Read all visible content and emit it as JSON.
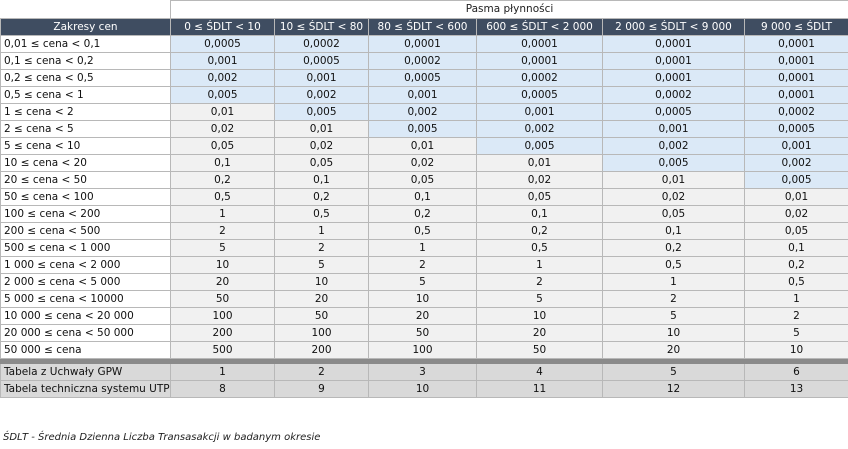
{
  "header": {
    "group_title": "Pasma płynności",
    "row_header": "Zakresy cen",
    "columns": [
      "0 ≤ ŚDLT < 10",
      "10 ≤ ŚDLT < 80",
      "80 ≤ ŚDLT < 600",
      "600 ≤ ŚDLT < 2 000",
      "2 000 ≤  ŚDLT < 9 000",
      "9 000 ≤  ŚDLT"
    ]
  },
  "rows": [
    {
      "label": "0,01 ≤ cena < 0,1",
      "values": [
        "0,0005",
        "0,0002",
        "0,0001",
        "0,0001",
        "0,0001",
        "0,0001"
      ],
      "shade": [
        "blue",
        "blue",
        "blue",
        "blue",
        "blue",
        "blue"
      ]
    },
    {
      "label": "0,1 ≤ cena < 0,2",
      "values": [
        "0,001",
        "0,0005",
        "0,0002",
        "0,0001",
        "0,0001",
        "0,0001"
      ],
      "shade": [
        "blue",
        "blue",
        "blue",
        "blue",
        "blue",
        "blue"
      ]
    },
    {
      "label": "0,2 ≤ cena < 0,5",
      "values": [
        "0,002",
        "0,001",
        "0,0005",
        "0,0002",
        "0,0001",
        "0,0001"
      ],
      "shade": [
        "blue",
        "blue",
        "blue",
        "blue",
        "blue",
        "blue"
      ]
    },
    {
      "label": "0,5 ≤ cena < 1",
      "values": [
        "0,005",
        "0,002",
        "0,001",
        "0,0005",
        "0,0002",
        "0,0001"
      ],
      "shade": [
        "blue",
        "blue",
        "blue",
        "blue",
        "blue",
        "blue"
      ]
    },
    {
      "label": "1 ≤ cena < 2",
      "values": [
        "0,01",
        "0,005",
        "0,002",
        "0,001",
        "0,0005",
        "0,0002"
      ],
      "shade": [
        "grey",
        "blue",
        "blue",
        "blue",
        "blue",
        "blue"
      ]
    },
    {
      "label": "2 ≤ cena < 5",
      "values": [
        "0,02",
        "0,01",
        "0,005",
        "0,002",
        "0,001",
        "0,0005"
      ],
      "shade": [
        "grey",
        "grey",
        "blue",
        "blue",
        "blue",
        "blue"
      ]
    },
    {
      "label": "5 ≤ cena < 10",
      "values": [
        "0,05",
        "0,02",
        "0,01",
        "0,005",
        "0,002",
        "0,001"
      ],
      "shade": [
        "grey",
        "grey",
        "grey",
        "blue",
        "blue",
        "blue"
      ]
    },
    {
      "label": "10 ≤ cena < 20",
      "values": [
        "0,1",
        "0,05",
        "0,02",
        "0,01",
        "0,005",
        "0,002"
      ],
      "shade": [
        "grey",
        "grey",
        "grey",
        "grey",
        "blue",
        "blue"
      ]
    },
    {
      "label": "20 ≤ cena < 50",
      "values": [
        "0,2",
        "0,1",
        "0,05",
        "0,02",
        "0,01",
        "0,005"
      ],
      "shade": [
        "grey",
        "grey",
        "grey",
        "grey",
        "grey",
        "blue"
      ]
    },
    {
      "label": "50 ≤ cena < 100",
      "values": [
        "0,5",
        "0,2",
        "0,1",
        "0,05",
        "0,02",
        "0,01"
      ],
      "shade": [
        "grey",
        "grey",
        "grey",
        "grey",
        "grey",
        "grey"
      ]
    },
    {
      "label": "100 ≤ cena < 200",
      "values": [
        "1",
        "0,5",
        "0,2",
        "0,1",
        "0,05",
        "0,02"
      ],
      "shade": [
        "grey",
        "grey",
        "grey",
        "grey",
        "grey",
        "grey"
      ]
    },
    {
      "label": "200 ≤ cena < 500",
      "values": [
        "2",
        "1",
        "0,5",
        "0,2",
        "0,1",
        "0,05"
      ],
      "shade": [
        "grey",
        "grey",
        "grey",
        "grey",
        "grey",
        "grey"
      ]
    },
    {
      "label": "500 ≤ cena < 1 000",
      "values": [
        "5",
        "2",
        "1",
        "0,5",
        "0,2",
        "0,1"
      ],
      "shade": [
        "grey",
        "grey",
        "grey",
        "grey",
        "grey",
        "grey"
      ]
    },
    {
      "label": "1 000 ≤ cena < 2 000",
      "values": [
        "10",
        "5",
        "2",
        "1",
        "0,5",
        "0,2"
      ],
      "shade": [
        "grey",
        "grey",
        "grey",
        "grey",
        "grey",
        "grey"
      ]
    },
    {
      "label": "2 000 ≤ cena < 5 000",
      "values": [
        "20",
        "10",
        "5",
        "2",
        "1",
        "0,5"
      ],
      "shade": [
        "grey",
        "grey",
        "grey",
        "grey",
        "grey",
        "grey"
      ]
    },
    {
      "label": "5 000 ≤ cena < 10000",
      "values": [
        "50",
        "20",
        "10",
        "5",
        "2",
        "1"
      ],
      "shade": [
        "grey",
        "grey",
        "grey",
        "grey",
        "grey",
        "grey"
      ]
    },
    {
      "label": "10 000 ≤ cena < 20 000",
      "values": [
        "100",
        "50",
        "20",
        "10",
        "5",
        "2"
      ],
      "shade": [
        "grey",
        "grey",
        "grey",
        "grey",
        "grey",
        "grey"
      ]
    },
    {
      "label": "20 000 ≤ cena < 50 000",
      "values": [
        "200",
        "100",
        "50",
        "20",
        "10",
        "5"
      ],
      "shade": [
        "grey",
        "grey",
        "grey",
        "grey",
        "grey",
        "grey"
      ]
    },
    {
      "label": "50 000 ≤ cena",
      "values": [
        "500",
        "200",
        "100",
        "50",
        "20",
        "10"
      ],
      "shade": [
        "grey",
        "grey",
        "grey",
        "grey",
        "grey",
        "grey"
      ]
    }
  ],
  "footer_rows": [
    {
      "label": "Tabela z Uchwały GPW",
      "values": [
        "1",
        "2",
        "3",
        "4",
        "5",
        "6"
      ]
    },
    {
      "label": "Tabela techniczna systemu UTP",
      "values": [
        "8",
        "9",
        "10",
        "11",
        "12",
        "13"
      ]
    }
  ],
  "note": "ŚDLT - Średnia Dzienna Liczba Transasakcji  w badanym okresie",
  "colors": {
    "header_bg": "#3f4d61",
    "header_text": "#ffffff",
    "blue_cell": "#dbe9f7",
    "grey_cell": "#f1f1f1",
    "footer_bg": "#d9d9d9",
    "separator": "#8a8a8a"
  }
}
